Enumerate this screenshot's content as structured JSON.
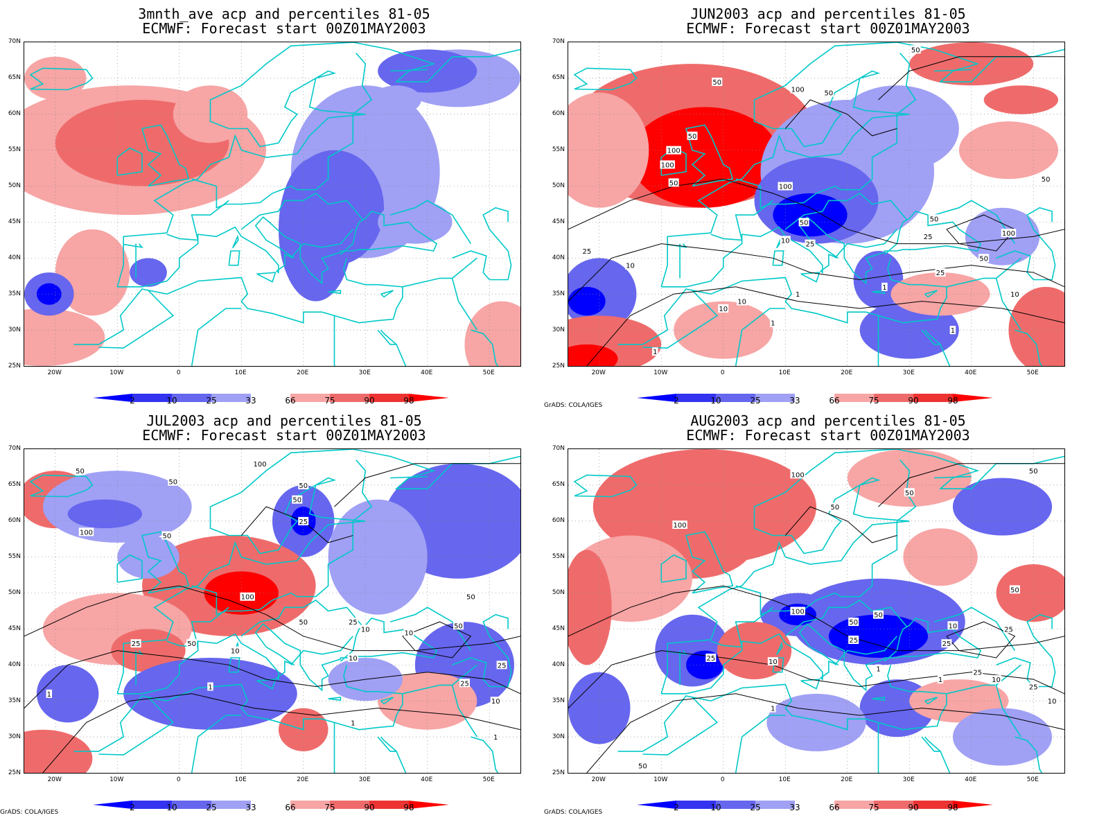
{
  "panels": [
    {
      "id": "p1",
      "title_line1": "3mnth_ave acp and percentiles 81-05",
      "title_line2": "ECMWF: Forecast start 00Z01MAY2003",
      "credit": "",
      "contour_labels": []
    },
    {
      "id": "p2",
      "title_line1": "JUN2003 acp and percentiles 81-05",
      "title_line2": "ECMWF: Forecast start 00Z01MAY2003",
      "credit": "GrADS: COLA/IGES",
      "contour_labels": [
        "50",
        "50",
        "100",
        "50",
        "50",
        "100",
        "100",
        "50",
        "100",
        "50",
        "50",
        "25",
        "100",
        "50",
        "25",
        "10",
        "25",
        "10",
        "10",
        "1",
        "10",
        "1",
        "50",
        "25",
        "10",
        "1",
        "1",
        "1"
      ]
    },
    {
      "id": "p3",
      "title_line1": "JUL2003 acp and percentiles 81-05",
      "title_line2": "ECMWF: Forecast start 00Z01MAY2003",
      "credit": "GrADS: COLA/IGES",
      "contour_labels": [
        "50",
        "100",
        "50",
        "50",
        "50",
        "25",
        "100",
        "50",
        "100",
        "50",
        "50",
        "25",
        "10",
        "50",
        "25",
        "10",
        "10",
        "50",
        "10",
        "25",
        "25",
        "10",
        "1",
        "1",
        "1",
        "1"
      ]
    },
    {
      "id": "p4",
      "title_line1": "AUG2003 acp and percentiles 81-05",
      "title_line2": "ECMWF: Forecast start 00Z01MAY2003",
      "credit": "GrADS: COLA/IGES",
      "contour_labels": [
        "50",
        "100",
        "50",
        "50",
        "100",
        "50",
        "100",
        "50",
        "25",
        "50",
        "25",
        "10",
        "25",
        "25",
        "10",
        "1",
        "10",
        "50",
        "25",
        "25",
        "10",
        "1",
        "1"
      ]
    }
  ],
  "lat_labels": [
    "70N",
    "65N",
    "60N",
    "55N",
    "50N",
    "45N",
    "40N",
    "35N",
    "30N",
    "25N"
  ],
  "lon_labels": [
    "20W",
    "10W",
    "0",
    "10E",
    "20E",
    "30E",
    "40E",
    "50E"
  ],
  "colorbar": {
    "labels": [
      "2",
      "10",
      "25",
      "33",
      "66",
      "75",
      "90",
      "98"
    ],
    "colors": [
      "#0000ff",
      "#3333f0",
      "#6666ee",
      "#a0a0f5",
      "#ffffff",
      "#f7a5a5",
      "#ef6b6b",
      "#ee3333",
      "#ff0000"
    ]
  },
  "colors": {
    "coastline": "#00c8c8",
    "contour": "#000000",
    "dark_blue": "#0000ff",
    "mid_blue": "#6666ee",
    "light_blue": "#a0a0f5",
    "light_red": "#f7a5a5",
    "mid_red": "#ef6b6b",
    "dark_red": "#ff0000"
  }
}
